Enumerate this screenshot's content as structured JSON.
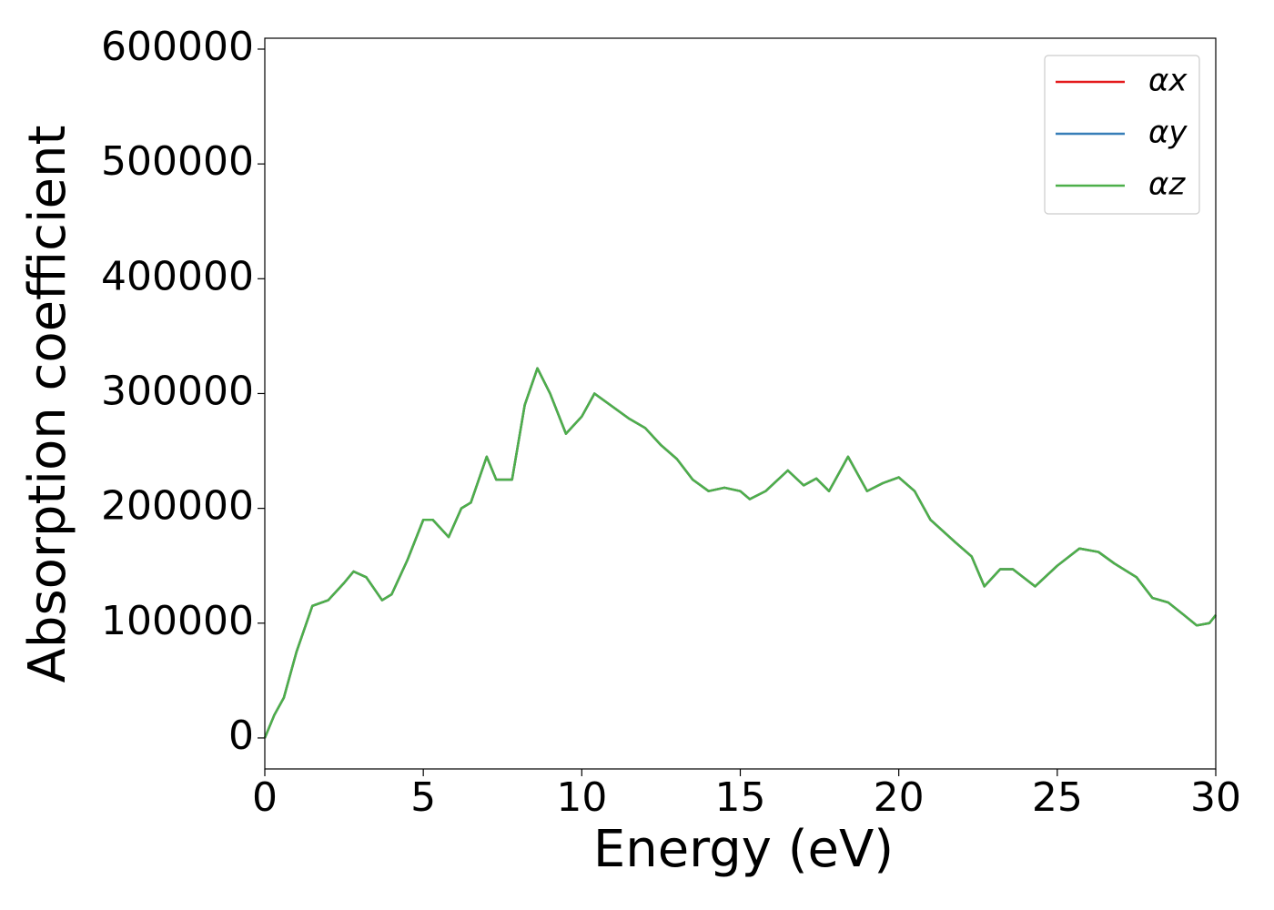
{
  "chart_data": {
    "type": "line",
    "xlabel": "Energy (eV)",
    "ylabel": "Absorption coefficient",
    "x": [
      0,
      0.3,
      0.6,
      1.0,
      1.5,
      2.0,
      2.5,
      2.8,
      3.2,
      3.7,
      4.0,
      4.5,
      5.0,
      5.3,
      5.8,
      6.2,
      6.5,
      7.0,
      7.3,
      7.8,
      8.2,
      8.6,
      9.0,
      9.5,
      10.0,
      10.4,
      11.0,
      11.5,
      12.0,
      12.5,
      13.0,
      13.5,
      14.0,
      14.5,
      15.0,
      15.3,
      15.8,
      16.5,
      17.0,
      17.4,
      17.8,
      18.4,
      19.0,
      19.5,
      20.0,
      20.5,
      21.0,
      21.8,
      22.3,
      22.7,
      23.2,
      23.6,
      24.3,
      25.0,
      25.7,
      26.3,
      26.8,
      27.5,
      28.0,
      28.5,
      29.0,
      29.4,
      29.8,
      30.0
    ],
    "series": [
      {
        "name": "αx",
        "color": "#e41a1c",
        "values": [
          0,
          20000,
          35000,
          75000,
          115000,
          120000,
          135000,
          145000,
          140000,
          120000,
          125000,
          155000,
          190000,
          190000,
          175000,
          200000,
          205000,
          245000,
          225000,
          225000,
          290000,
          322000,
          300000,
          265000,
          280000,
          300000,
          288000,
          278000,
          270000,
          255000,
          243000,
          225000,
          215000,
          218000,
          215000,
          208000,
          215000,
          233000,
          220000,
          226000,
          215000,
          245000,
          215000,
          222000,
          227000,
          215000,
          190000,
          170000,
          158000,
          132000,
          147000,
          147000,
          132000,
          150000,
          165000,
          162000,
          152000,
          140000,
          122000,
          118000,
          107000,
          98000,
          100000,
          107000
        ]
      },
      {
        "name": "αy",
        "color": "#377eb8",
        "values": [
          0,
          20000,
          35000,
          75000,
          115000,
          120000,
          135000,
          145000,
          140000,
          120000,
          125000,
          155000,
          190000,
          190000,
          175000,
          200000,
          205000,
          245000,
          225000,
          225000,
          290000,
          322000,
          300000,
          265000,
          280000,
          300000,
          288000,
          278000,
          270000,
          255000,
          243000,
          225000,
          215000,
          218000,
          215000,
          208000,
          215000,
          233000,
          220000,
          226000,
          215000,
          245000,
          215000,
          222000,
          227000,
          215000,
          190000,
          170000,
          158000,
          132000,
          147000,
          147000,
          132000,
          150000,
          165000,
          162000,
          152000,
          140000,
          122000,
          118000,
          107000,
          98000,
          100000,
          107000
        ]
      },
      {
        "name": "αz",
        "color": "#4daf4a",
        "values": [
          0,
          20000,
          35000,
          75000,
          115000,
          120000,
          135000,
          145000,
          140000,
          120000,
          125000,
          155000,
          190000,
          190000,
          175000,
          200000,
          205000,
          245000,
          225000,
          225000,
          290000,
          322000,
          300000,
          265000,
          280000,
          300000,
          288000,
          278000,
          270000,
          255000,
          243000,
          225000,
          215000,
          218000,
          215000,
          208000,
          215000,
          233000,
          220000,
          226000,
          215000,
          245000,
          215000,
          222000,
          227000,
          215000,
          190000,
          170000,
          158000,
          132000,
          147000,
          147000,
          132000,
          150000,
          165000,
          162000,
          152000,
          140000,
          122000,
          118000,
          107000,
          98000,
          100000,
          107000
        ]
      }
    ],
    "xlim": [
      0,
      30
    ],
    "xticks": [
      0,
      5,
      10,
      15,
      20,
      25,
      30
    ],
    "ylim": [
      -27000,
      609500
    ],
    "yticks": [
      0,
      100000,
      200000,
      300000,
      400000,
      500000,
      600000
    ],
    "legend": "upper right",
    "grid": false
  }
}
